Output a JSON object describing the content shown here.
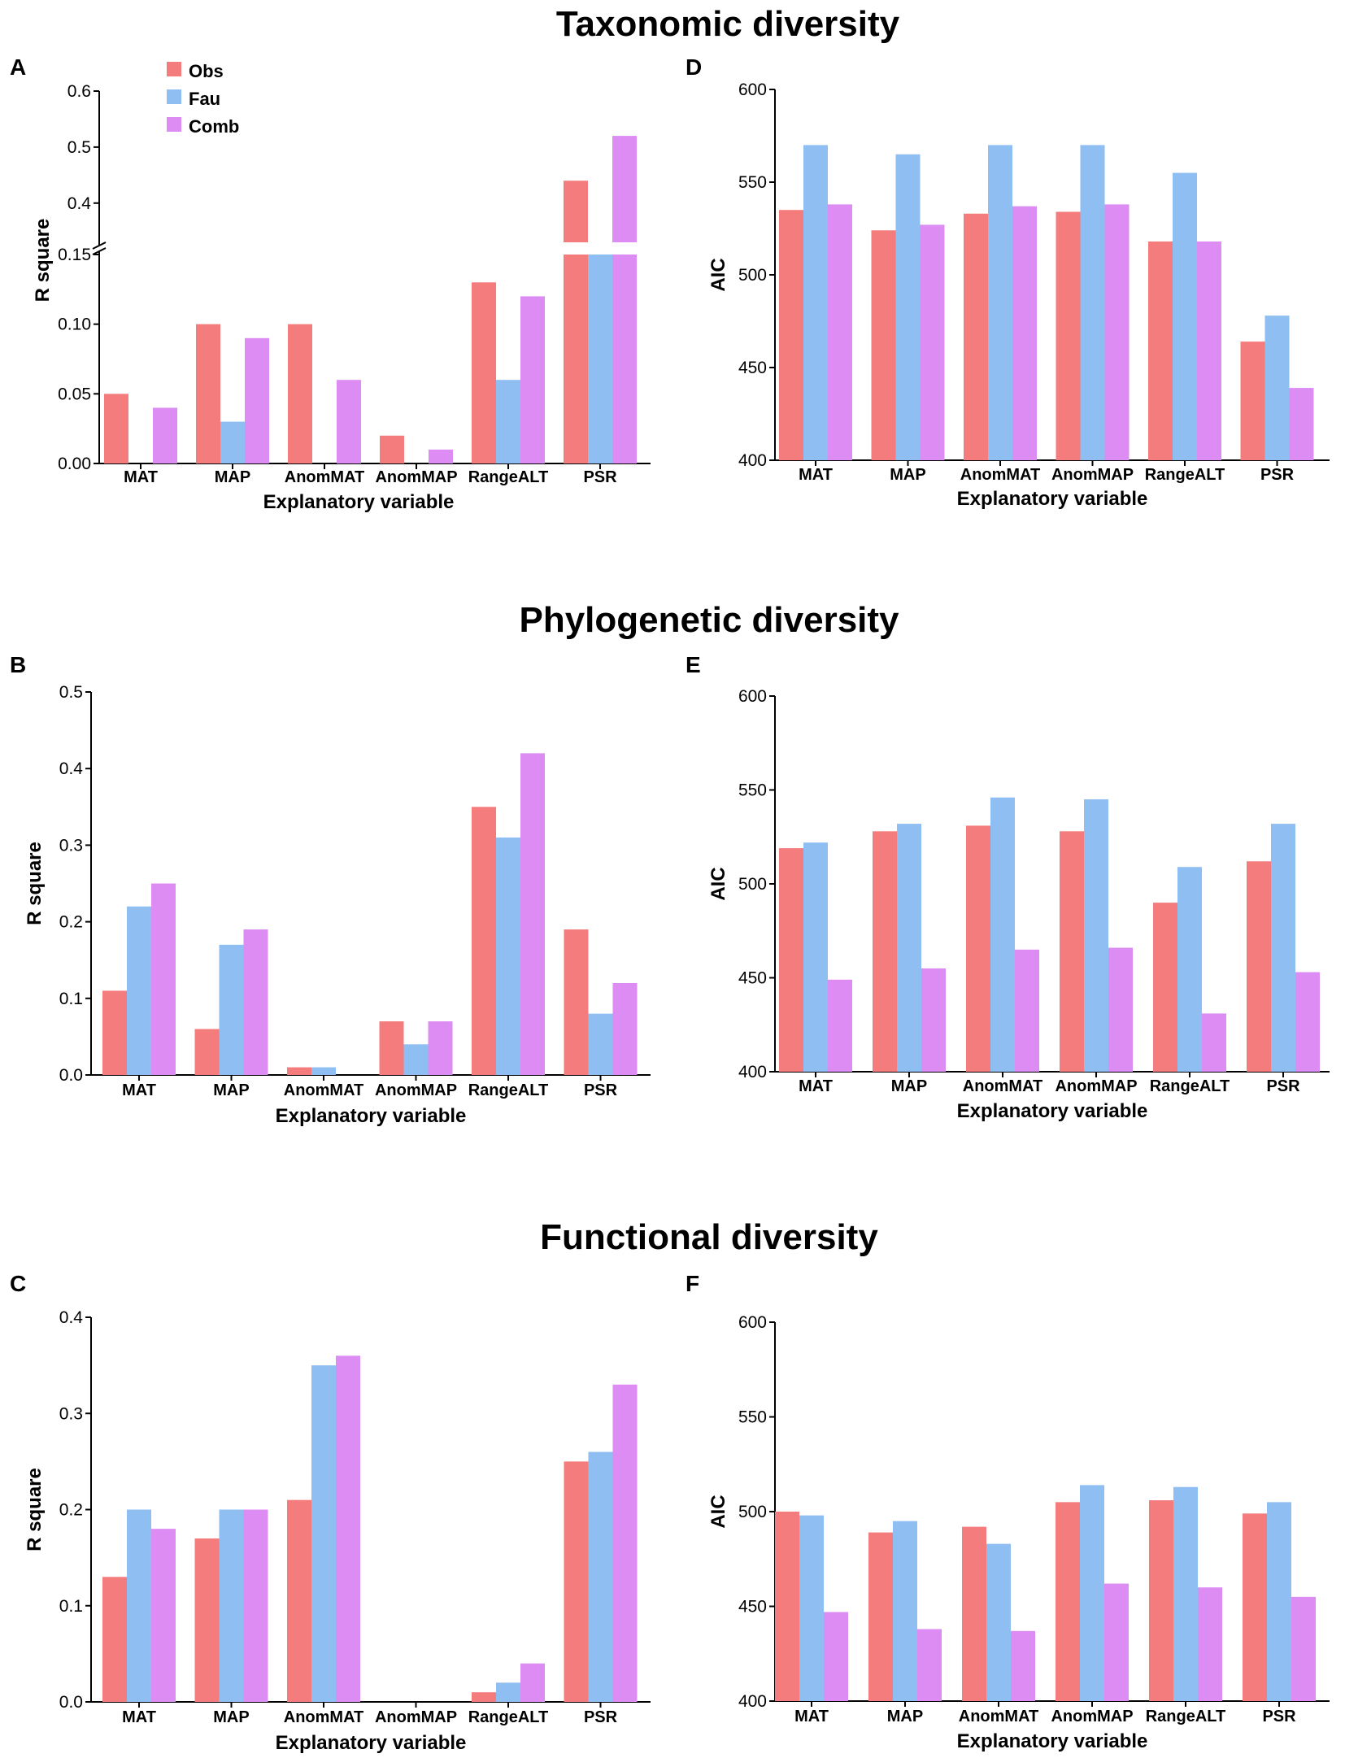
{
  "row_titles": [
    "Taxonomic diversity",
    "Phylogenetic diversity",
    "Functional diversity"
  ],
  "colors": {
    "Obs": "#f47c7c",
    "Fau": "#8fbef2",
    "Comb": "#dc8cf2"
  },
  "legend": [
    {
      "name": "Obs",
      "color": "#f47c7c"
    },
    {
      "name": "Fau",
      "color": "#8fbef2"
    },
    {
      "name": "Comb",
      "color": "#dc8cf2"
    }
  ],
  "chart_data": [
    {
      "id": "A",
      "type": "bar",
      "panel": "A",
      "title": "Taxonomic diversity",
      "xlabel": "Explanatory variable",
      "ylabel": "R square",
      "categories": [
        "MAT",
        "MAP",
        "AnomMAT",
        "AnomMAP",
        "RangeALT",
        "PSR"
      ],
      "series": [
        {
          "name": "Obs",
          "values": [
            0.05,
            0.1,
            0.1,
            0.02,
            0.13,
            0.44
          ]
        },
        {
          "name": "Fau",
          "values": [
            0.0,
            0.03,
            0.0,
            0.0,
            0.06,
            0.33
          ]
        },
        {
          "name": "Comb",
          "values": [
            0.04,
            0.09,
            0.06,
            0.01,
            0.12,
            0.52
          ]
        }
      ],
      "axis_break": true,
      "ylim_lower": [
        0,
        0.15
      ],
      "ylim_upper": [
        0.33,
        0.6
      ],
      "yticks_lower": [
        "0.00",
        "0.05",
        "0.10",
        "0.15"
      ],
      "yticks_upper": [
        "0.4",
        "0.5",
        "0.6"
      ]
    },
    {
      "id": "D",
      "type": "bar",
      "panel": "D",
      "title": "Taxonomic diversity",
      "xlabel": "Explanatory variable",
      "ylabel": "AIC",
      "categories": [
        "MAT",
        "MAP",
        "AnomMAT",
        "AnomMAP",
        "RangeALT",
        "PSR"
      ],
      "series": [
        {
          "name": "Obs",
          "values": [
            535,
            524,
            533,
            534,
            518,
            464
          ]
        },
        {
          "name": "Fau",
          "values": [
            570,
            565,
            570,
            570,
            555,
            478
          ]
        },
        {
          "name": "Comb",
          "values": [
            538,
            527,
            537,
            538,
            518,
            439
          ]
        }
      ],
      "ylim": [
        400,
        600
      ],
      "yticks": [
        "400",
        "450",
        "500",
        "550",
        "600"
      ]
    },
    {
      "id": "B",
      "type": "bar",
      "panel": "B",
      "title": "Phylogenetic diversity",
      "xlabel": "Explanatory variable",
      "ylabel": "R square",
      "categories": [
        "MAT",
        "MAP",
        "AnomMAT",
        "AnomMAP",
        "RangeALT",
        "PSR"
      ],
      "series": [
        {
          "name": "Obs",
          "values": [
            0.11,
            0.06,
            0.01,
            0.07,
            0.35,
            0.19
          ]
        },
        {
          "name": "Fau",
          "values": [
            0.22,
            0.17,
            0.01,
            0.04,
            0.31,
            0.08
          ]
        },
        {
          "name": "Comb",
          "values": [
            0.25,
            0.19,
            0.0,
            0.07,
            0.42,
            0.12
          ]
        }
      ],
      "ylim": [
        0,
        0.5
      ],
      "yticks": [
        "0.0",
        "0.1",
        "0.2",
        "0.3",
        "0.4",
        "0.5"
      ]
    },
    {
      "id": "E",
      "type": "bar",
      "panel": "E",
      "title": "Phylogenetic diversity",
      "xlabel": "Explanatory variable",
      "ylabel": "AIC",
      "categories": [
        "MAT",
        "MAP",
        "AnomMAT",
        "AnomMAP",
        "RangeALT",
        "PSR"
      ],
      "series": [
        {
          "name": "Obs",
          "values": [
            519,
            528,
            531,
            528,
            490,
            512
          ]
        },
        {
          "name": "Fau",
          "values": [
            522,
            532,
            546,
            545,
            509,
            532
          ]
        },
        {
          "name": "Comb",
          "values": [
            449,
            455,
            465,
            466,
            431,
            453
          ]
        }
      ],
      "ylim": [
        400,
        600
      ],
      "yticks": [
        "400",
        "450",
        "500",
        "550",
        "600"
      ]
    },
    {
      "id": "C",
      "type": "bar",
      "panel": "C",
      "title": "Functional diversity",
      "xlabel": "Explanatory variable",
      "ylabel": "R square",
      "categories": [
        "MAT",
        "MAP",
        "AnomMAT",
        "AnomMAP",
        "RangeALT",
        "PSR"
      ],
      "series": [
        {
          "name": "Obs",
          "values": [
            0.13,
            0.17,
            0.21,
            0.0,
            0.01,
            0.25
          ]
        },
        {
          "name": "Fau",
          "values": [
            0.2,
            0.2,
            0.35,
            0.0,
            0.02,
            0.26
          ]
        },
        {
          "name": "Comb",
          "values": [
            0.18,
            0.2,
            0.36,
            0.0,
            0.04,
            0.33
          ]
        }
      ],
      "ylim": [
        0,
        0.4
      ],
      "yticks": [
        "0.0",
        "0.1",
        "0.2",
        "0.3",
        "0.4"
      ]
    },
    {
      "id": "F",
      "type": "bar",
      "panel": "F",
      "title": "Functional diversity",
      "xlabel": "Explanatory variable",
      "ylabel": "AIC",
      "categories": [
        "MAT",
        "MAP",
        "AnomMAT",
        "AnomMAP",
        "RangeALT",
        "PSR"
      ],
      "series": [
        {
          "name": "Obs",
          "values": [
            500,
            489,
            492,
            505,
            506,
            499
          ]
        },
        {
          "name": "Fau",
          "values": [
            498,
            495,
            483,
            514,
            513,
            505
          ]
        },
        {
          "name": "Comb",
          "values": [
            447,
            438,
            437,
            462,
            460,
            455
          ]
        }
      ],
      "ylim": [
        400,
        600
      ],
      "yticks": [
        "400",
        "450",
        "500",
        "550",
        "600"
      ]
    }
  ]
}
